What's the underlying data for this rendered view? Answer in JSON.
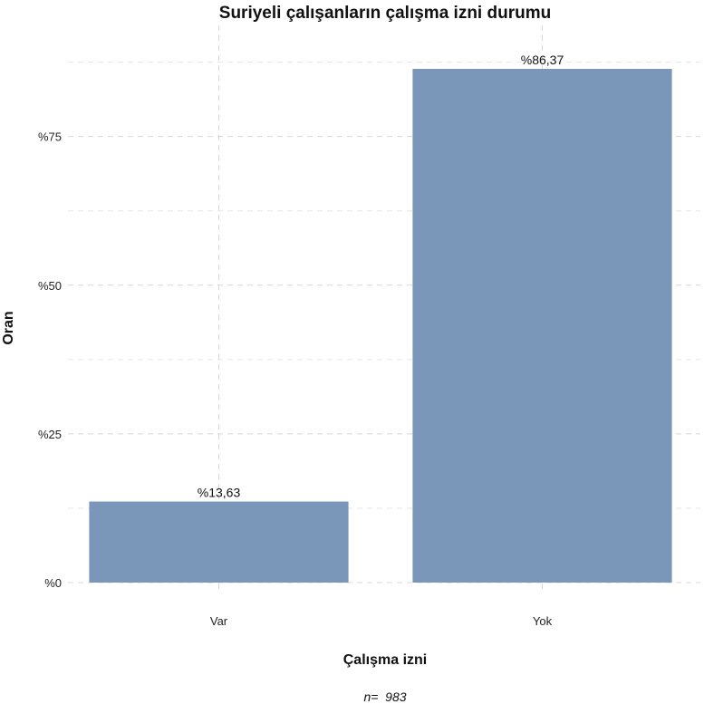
{
  "chart_data": {
    "type": "bar",
    "title": "Suriyeli çalışanların çalışma izni durumu",
    "xlabel": "Çalışma izni",
    "ylabel": "Oran",
    "categories": [
      "Var",
      "Yok"
    ],
    "values": [
      13.63,
      86.37
    ],
    "data_labels": [
      "%13,63",
      "%86,37"
    ],
    "ylim": [
      0,
      86.37
    ],
    "yticks": [
      0,
      25,
      50,
      75
    ],
    "ytick_labels": [
      "%0",
      "%25",
      "%50",
      "%75"
    ],
    "bar_color": "#7a97ba",
    "grid": true,
    "caption": "n=  983"
  }
}
